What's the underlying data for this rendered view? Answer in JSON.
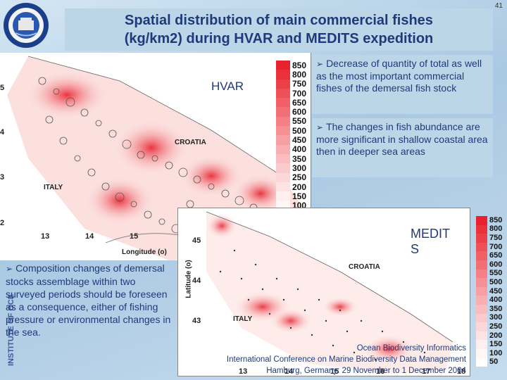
{
  "page_number": "41",
  "title": {
    "line1": "Spatial distribution of main commercial fishes",
    "line2": "(kg/km2) during HVAR and MEDITS expedition"
  },
  "side_label": "INSTITUTE OF OCE",
  "map_top": {
    "label": "HVAR",
    "y_ticks": [
      "5",
      "4",
      "3",
      "2"
    ],
    "x_ticks": [
      "13",
      "14",
      "15"
    ],
    "x_axis_label": "Longitude (o)",
    "place_croatia": "CROATIA",
    "place_italy": "ITALY"
  },
  "colorbar_top": {
    "values": [
      "850",
      "800",
      "750",
      "700",
      "650",
      "600",
      "550",
      "500",
      "450",
      "400",
      "350",
      "300",
      "250",
      "200",
      "150",
      "100"
    ]
  },
  "bullets_right": [
    {
      "text": "Decrease of quantity of total as well as the most important commercial fishes of the demersal fish stock"
    },
    {
      "text": "The changes in fish abundance are more significant in shallow coastal area then in deeper sea areas"
    }
  ],
  "bullet_left": {
    "text": "Composition changes of demersal stocks assemblage within two surveyed periods should be foreseen as a consequence, either of fishing pressure or environmental changes in the sea."
  },
  "map_bottom": {
    "label_line1": "MEDIT",
    "label_line2": "S",
    "y_ticks": [
      "45",
      "44",
      "43"
    ],
    "x_ticks": [
      "13",
      "14",
      "15",
      "16",
      "17",
      "18"
    ],
    "y_axis_label": "Latitude (o)",
    "place_croatia": "CROATIA",
    "place_italy": "ITALY"
  },
  "colorbar_bottom": {
    "values": [
      "850",
      "800",
      "750",
      "700",
      "650",
      "600",
      "550",
      "500",
      "450",
      "400",
      "350",
      "300",
      "250",
      "200",
      "150",
      "100",
      "50"
    ]
  },
  "conference": {
    "line1": "Ocean Biodiversity Informatics",
    "line2": "International Conference on Marine Biodiversity Data Management",
    "line3": "Hamburg, Germany: 29 November to 1 December 2004"
  },
  "colors": {
    "title": "#1f3a7a",
    "heat_high": "#e8212e",
    "heat_low": "#fde9e8"
  }
}
